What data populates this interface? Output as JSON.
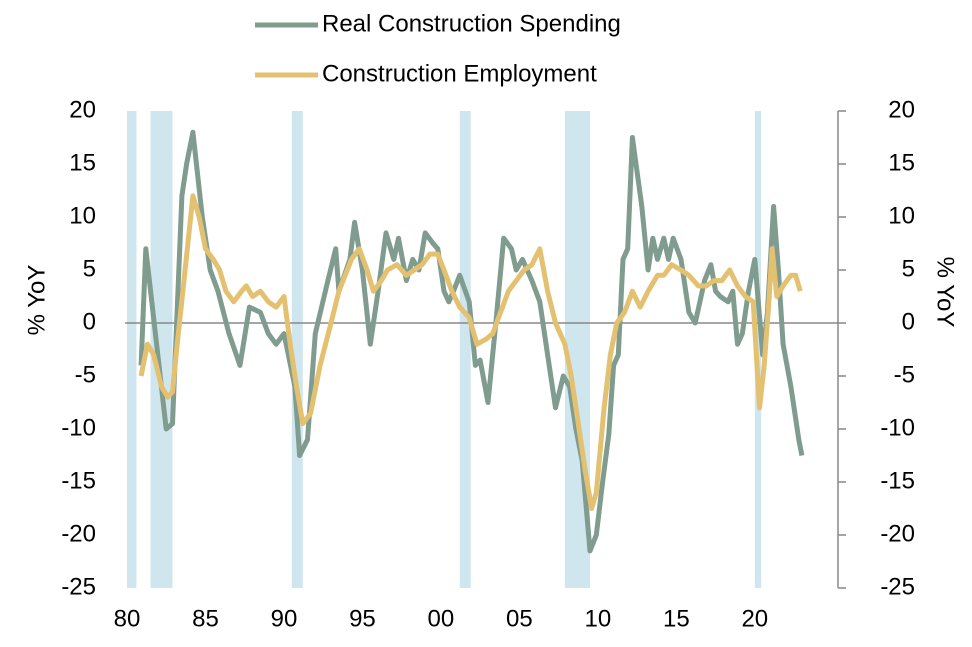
{
  "chart_data": {
    "type": "line",
    "ylabel": "% YoY",
    "y2label": "% YoY",
    "xlim": [
      1980,
      2025.3
    ],
    "xticks": [
      {
        "value": 1980,
        "label": "80"
      },
      {
        "value": 1985,
        "label": "85"
      },
      {
        "value": 1990,
        "label": "90"
      },
      {
        "value": 1995,
        "label": "95"
      },
      {
        "value": 2000,
        "label": "00"
      },
      {
        "value": 2005,
        "label": "05"
      },
      {
        "value": 2010,
        "label": "10"
      },
      {
        "value": 2015,
        "label": "15"
      },
      {
        "value": 2020,
        "label": "20"
      }
    ],
    "ylim": [
      -25,
      20
    ],
    "yticks": [
      -25,
      -20,
      -15,
      -10,
      -5,
      0,
      5,
      10,
      15,
      20
    ],
    "y2lim": [
      -25,
      20
    ],
    "y2ticks": [
      -25,
      -20,
      -15,
      -10,
      -5,
      0,
      5,
      10,
      15,
      20
    ],
    "legend": "top",
    "shaded_ranges": [
      [
        1980.0,
        1980.6
      ],
      [
        1981.5,
        1982.9
      ],
      [
        1990.5,
        1991.2
      ],
      [
        2001.2,
        2001.9
      ],
      [
        2007.9,
        2009.5
      ],
      [
        2020.0,
        2020.4
      ]
    ],
    "shade_color": "#cfe6ee",
    "series": [
      {
        "name": "Real Construction Spending",
        "color": "#7f9c8f",
        "x": [
          1980.9,
          1981.2,
          1982.5,
          1982.9,
          1983.5,
          1983.8,
          1984.2,
          1984.8,
          1985.3,
          1985.8,
          1986.5,
          1987.2,
          1987.8,
          1988.5,
          1989.0,
          1989.5,
          1990.0,
          1990.7,
          1991.0,
          1991.5,
          1992.0,
          1992.8,
          1993.3,
          1993.5,
          1994.2,
          1994.5,
          1995.0,
          1995.5,
          1996.0,
          1996.5,
          1997.0,
          1997.3,
          1997.8,
          1998.2,
          1998.6,
          1999.0,
          1999.5,
          1999.8,
          2000.2,
          2000.5,
          2000.8,
          2001.2,
          2001.8,
          2002.2,
          2002.5,
          2003.0,
          2003.5,
          2004.0,
          2004.5,
          2004.8,
          2005.2,
          2005.8,
          2006.3,
          2006.8,
          2007.3,
          2007.8,
          2008.2,
          2008.6,
          2009.0,
          2009.5,
          2009.9,
          2010.3,
          2010.7,
          2011.0,
          2011.3,
          2011.6,
          2011.9,
          2012.2,
          2012.8,
          2013.2,
          2013.5,
          2013.8,
          2014.2,
          2014.5,
          2014.8,
          2015.3,
          2015.8,
          2016.2,
          2016.8,
          2017.2,
          2017.5,
          2017.8,
          2018.3,
          2018.6,
          2018.9,
          2019.2,
          2019.6,
          2020.0,
          2020.5,
          2020.8,
          2021.2,
          2021.5,
          2021.8,
          2022.3,
          2022.8,
          2023.0
        ],
        "values": [
          -4,
          7,
          -10,
          -9.5,
          12,
          15,
          18,
          10,
          5,
          3,
          -1,
          -4,
          1.5,
          1,
          -1,
          -2,
          -1,
          -6,
          -12.5,
          -11,
          -1,
          4,
          7,
          3,
          6,
          9.5,
          5,
          -2,
          3,
          8.5,
          6,
          8,
          4,
          6,
          5,
          8.5,
          7.5,
          7,
          3,
          2,
          3,
          4.5,
          2,
          -4,
          -3.5,
          -7.5,
          0,
          8,
          7,
          5,
          6,
          4,
          2,
          -3,
          -8,
          -5,
          -6,
          -10,
          -13,
          -21.5,
          -20,
          -15,
          -10.5,
          -4,
          -3,
          6,
          7,
          17.5,
          11,
          5,
          8,
          6,
          8,
          6,
          8,
          6,
          1,
          0,
          4,
          5.5,
          3,
          2.5,
          2,
          3,
          -2,
          -1,
          3,
          6,
          -3,
          1,
          11,
          5,
          -2,
          -6,
          -11,
          -12.5
        ]
      },
      {
        "name": "Construction Employment",
        "color": "#e3c170",
        "axis": "y2",
        "x": [
          1980.9,
          1981.3,
          1981.7,
          1982.2,
          1982.6,
          1982.9,
          1983.2,
          1983.7,
          1984.2,
          1984.6,
          1985.0,
          1985.5,
          1985.9,
          1986.3,
          1986.8,
          1987.3,
          1987.6,
          1988.0,
          1988.5,
          1989.0,
          1989.5,
          1990.0,
          1990.4,
          1990.8,
          1991.2,
          1991.7,
          1992.3,
          1993.0,
          1993.5,
          1994.3,
          1994.8,
          1995.3,
          1995.7,
          1996.2,
          1996.6,
          1997.2,
          1997.8,
          1998.3,
          1998.8,
          1999.3,
          1999.8,
          2000.2,
          2000.7,
          2001.2,
          2001.8,
          2002.3,
          2002.9,
          2003.3,
          2003.8,
          2004.3,
          2004.8,
          2005.3,
          2005.8,
          2006.3,
          2006.8,
          2007.3,
          2007.9,
          2008.3,
          2008.7,
          2009.2,
          2009.6,
          2009.9,
          2010.4,
          2010.8,
          2011.2,
          2011.7,
          2012.2,
          2012.7,
          2013.2,
          2013.8,
          2014.2,
          2014.7,
          2015.3,
          2015.8,
          2016.4,
          2016.9,
          2017.4,
          2017.9,
          2018.4,
          2018.9,
          2019.4,
          2019.9,
          2020.3,
          2020.6,
          2020.9,
          2021.1,
          2021.4,
          2021.8,
          2022.3,
          2022.6,
          2022.9
        ],
        "values": [
          -5,
          -2,
          -3,
          -6,
          -7,
          -6.5,
          -2,
          5,
          12,
          10,
          7,
          6,
          5,
          3,
          2,
          3,
          3.5,
          2.5,
          3,
          2,
          1.5,
          2.5,
          -2,
          -6,
          -9.5,
          -8.5,
          -4,
          0,
          3,
          6,
          7,
          5,
          3,
          4,
          5,
          5.5,
          4.5,
          5,
          5.5,
          6.5,
          6.5,
          5,
          3,
          1.5,
          0.5,
          -2,
          -1.5,
          -1,
          1,
          3,
          4,
          5,
          5.5,
          7,
          3,
          0,
          -2,
          -5,
          -9,
          -14,
          -17.5,
          -16,
          -8,
          -3,
          0,
          1,
          3,
          1.5,
          3,
          4.5,
          4.5,
          5.5,
          5,
          4.5,
          3.5,
          3.5,
          4,
          4,
          5,
          3.5,
          2.5,
          2,
          -8,
          -4,
          2,
          7,
          2.5,
          3.5,
          4.5,
          4.5,
          3
        ]
      }
    ]
  }
}
